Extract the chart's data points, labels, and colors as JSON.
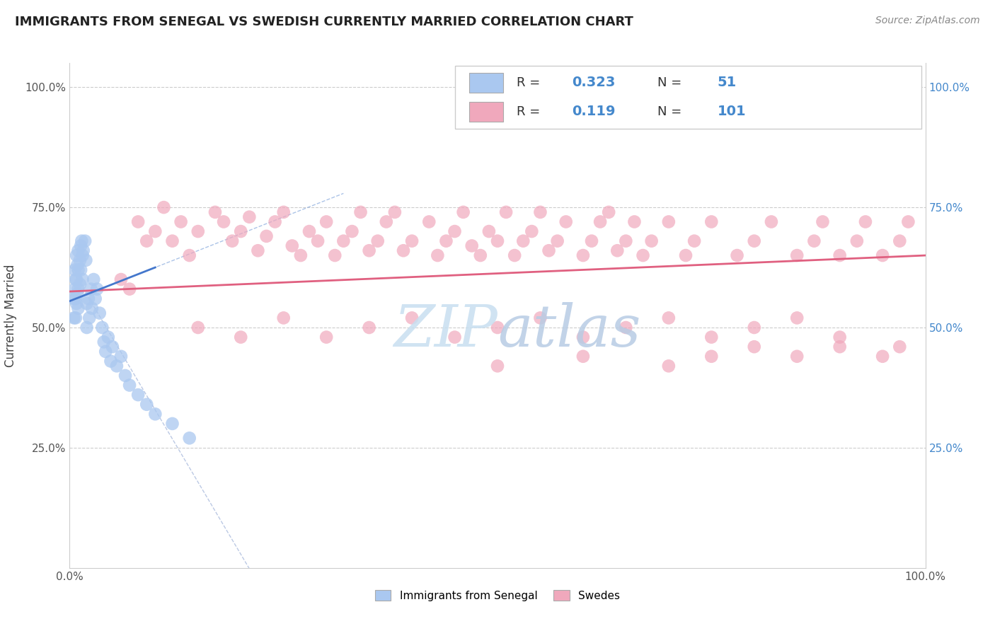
{
  "title": "IMMIGRANTS FROM SENEGAL VS SWEDISH CURRENTLY MARRIED CORRELATION CHART",
  "source": "Source: ZipAtlas.com",
  "ylabel": "Currently Married",
  "xlim": [
    0.0,
    1.0
  ],
  "ylim": [
    0.0,
    1.05
  ],
  "yticks": [
    0.0,
    0.25,
    0.5,
    0.75,
    1.0
  ],
  "left_ytick_labels": [
    "",
    "25.0%",
    "50.0%",
    "75.0%",
    "100.0%"
  ],
  "right_ytick_labels": [
    "",
    "25.0%",
    "50.0%",
    "75.0%",
    "100.0%"
  ],
  "blue_R": "0.323",
  "blue_N": "51",
  "pink_R": "0.119",
  "pink_N": "101",
  "blue_color": "#aac8f0",
  "pink_color": "#f0a8bc",
  "blue_line_color": "#4477cc",
  "pink_line_color": "#e06080",
  "legend_labels": [
    "Immigrants from Senegal",
    "Swedes"
  ],
  "watermark_color": "#c8dff0",
  "blue_scatter_x": [
    0.005,
    0.005,
    0.006,
    0.006,
    0.007,
    0.007,
    0.007,
    0.008,
    0.008,
    0.008,
    0.009,
    0.009,
    0.01,
    0.01,
    0.01,
    0.01,
    0.012,
    0.012,
    0.013,
    0.013,
    0.014,
    0.015,
    0.015,
    0.016,
    0.018,
    0.019,
    0.02,
    0.02,
    0.022,
    0.023,
    0.025,
    0.026,
    0.028,
    0.03,
    0.032,
    0.035,
    0.038,
    0.04,
    0.042,
    0.045,
    0.048,
    0.05,
    0.055,
    0.06,
    0.065,
    0.07,
    0.08,
    0.09,
    0.1,
    0.12,
    0.14
  ],
  "blue_scatter_y": [
    0.56,
    0.52,
    0.62,
    0.58,
    0.6,
    0.56,
    0.52,
    0.65,
    0.6,
    0.55,
    0.63,
    0.57,
    0.66,
    0.62,
    0.58,
    0.54,
    0.64,
    0.59,
    0.67,
    0.62,
    0.68,
    0.65,
    0.6,
    0.66,
    0.68,
    0.64,
    0.55,
    0.5,
    0.56,
    0.52,
    0.58,
    0.54,
    0.6,
    0.56,
    0.58,
    0.53,
    0.5,
    0.47,
    0.45,
    0.48,
    0.43,
    0.46,
    0.42,
    0.44,
    0.4,
    0.38,
    0.36,
    0.34,
    0.32,
    0.3,
    0.27
  ],
  "pink_scatter_x": [
    0.06,
    0.07,
    0.08,
    0.09,
    0.1,
    0.11,
    0.12,
    0.13,
    0.14,
    0.15,
    0.17,
    0.18,
    0.19,
    0.2,
    0.21,
    0.22,
    0.23,
    0.24,
    0.25,
    0.26,
    0.27,
    0.28,
    0.29,
    0.3,
    0.31,
    0.32,
    0.33,
    0.34,
    0.35,
    0.36,
    0.37,
    0.38,
    0.39,
    0.4,
    0.42,
    0.43,
    0.44,
    0.45,
    0.46,
    0.47,
    0.48,
    0.49,
    0.5,
    0.51,
    0.52,
    0.53,
    0.54,
    0.55,
    0.56,
    0.57,
    0.58,
    0.6,
    0.61,
    0.62,
    0.63,
    0.64,
    0.65,
    0.66,
    0.67,
    0.68,
    0.7,
    0.72,
    0.73,
    0.75,
    0.78,
    0.8,
    0.82,
    0.85,
    0.87,
    0.88,
    0.9,
    0.92,
    0.93,
    0.95,
    0.97,
    0.98,
    0.15,
    0.2,
    0.25,
    0.3,
    0.35,
    0.4,
    0.45,
    0.5,
    0.55,
    0.6,
    0.65,
    0.7,
    0.75,
    0.8,
    0.85,
    0.9,
    0.5,
    0.6,
    0.7,
    0.75,
    0.8,
    0.85,
    0.9,
    0.95,
    0.97
  ],
  "pink_scatter_y": [
    0.6,
    0.58,
    0.72,
    0.68,
    0.7,
    0.75,
    0.68,
    0.72,
    0.65,
    0.7,
    0.74,
    0.72,
    0.68,
    0.7,
    0.73,
    0.66,
    0.69,
    0.72,
    0.74,
    0.67,
    0.65,
    0.7,
    0.68,
    0.72,
    0.65,
    0.68,
    0.7,
    0.74,
    0.66,
    0.68,
    0.72,
    0.74,
    0.66,
    0.68,
    0.72,
    0.65,
    0.68,
    0.7,
    0.74,
    0.67,
    0.65,
    0.7,
    0.68,
    0.74,
    0.65,
    0.68,
    0.7,
    0.74,
    0.66,
    0.68,
    0.72,
    0.65,
    0.68,
    0.72,
    0.74,
    0.66,
    0.68,
    0.72,
    0.65,
    0.68,
    0.72,
    0.65,
    0.68,
    0.72,
    0.65,
    0.68,
    0.72,
    0.65,
    0.68,
    0.72,
    0.65,
    0.68,
    0.72,
    0.65,
    0.68,
    0.72,
    0.5,
    0.48,
    0.52,
    0.48,
    0.5,
    0.52,
    0.48,
    0.5,
    0.52,
    0.48,
    0.5,
    0.52,
    0.48,
    0.5,
    0.52,
    0.48,
    0.42,
    0.44,
    0.42,
    0.44,
    0.46,
    0.44,
    0.46,
    0.44,
    0.46
  ]
}
